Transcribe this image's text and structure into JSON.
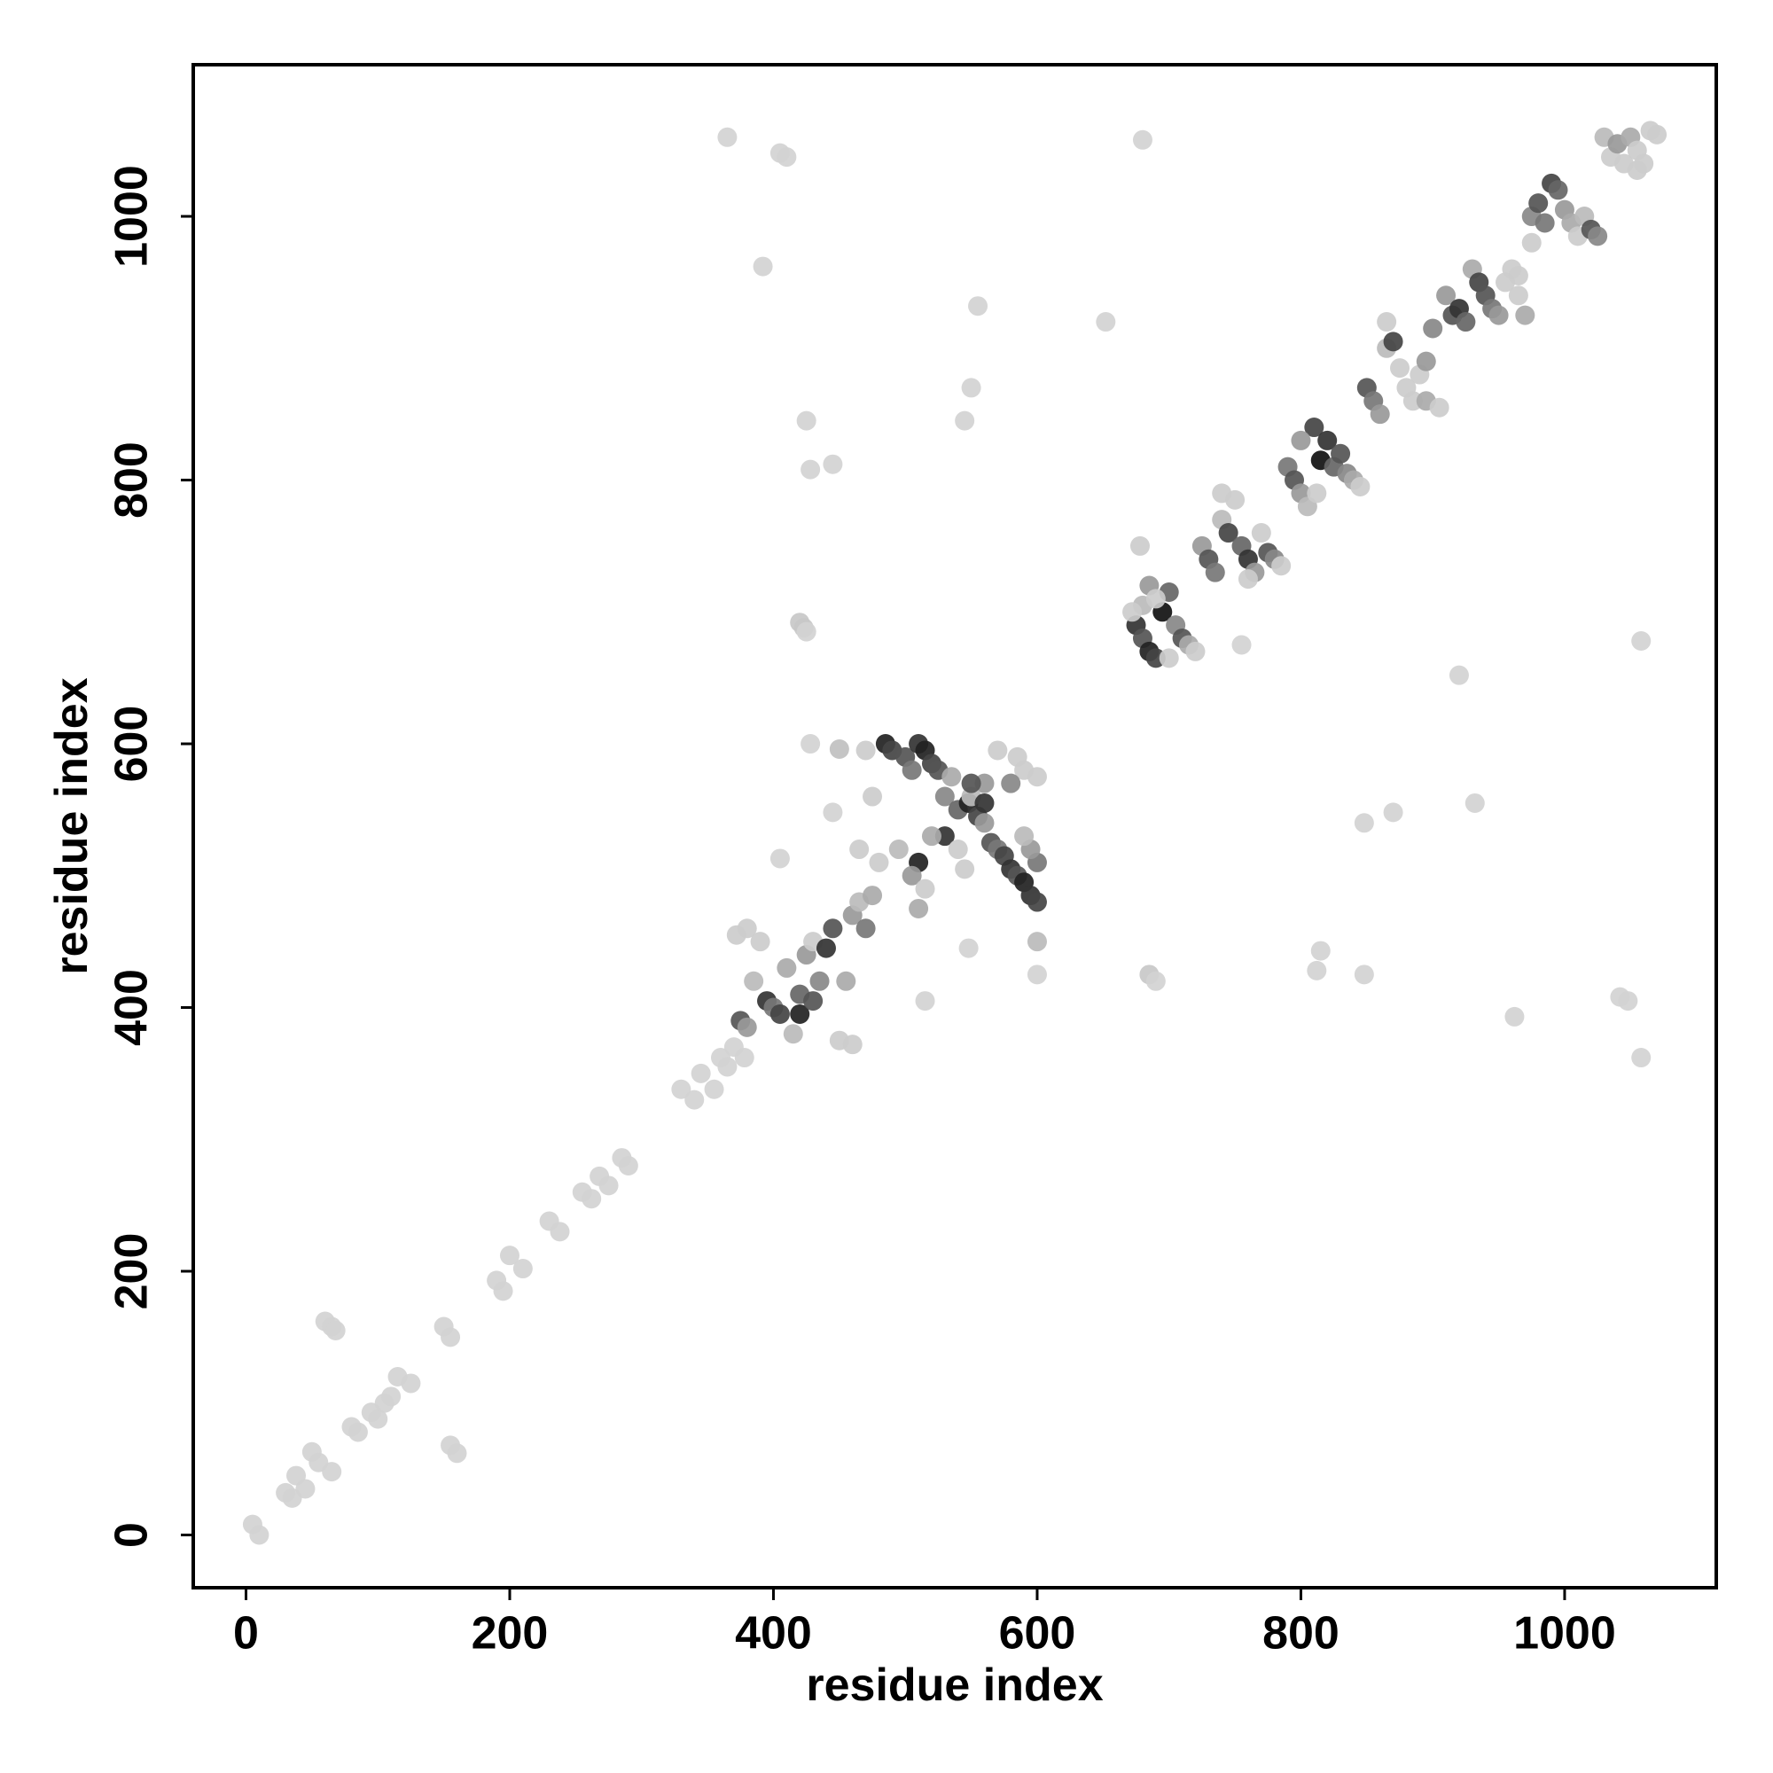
{
  "chart_data": {
    "type": "scatter",
    "xlabel": "residue index",
    "ylabel": "residue index",
    "xlim": [
      -40,
      1115
    ],
    "ylim": [
      -40,
      1115
    ],
    "xticks": [
      0,
      200,
      400,
      600,
      800,
      1000
    ],
    "yticks": [
      0,
      200,
      400,
      600,
      800,
      1000
    ],
    "series": [
      {
        "x": [
          5,
          10,
          30,
          35,
          38,
          45,
          50,
          55,
          65,
          60,
          65,
          68,
          80,
          85,
          95,
          100,
          105,
          110,
          115,
          125,
          150,
          155,
          155,
          160,
          190,
          195,
          200,
          210,
          230,
          238,
          255,
          262,
          268,
          275,
          285,
          290,
          330,
          340,
          345,
          355,
          360,
          365,
          370,
          378,
          365,
          405,
          410,
          392,
          555,
          652,
          680,
          425,
          545,
          550,
          428,
          445,
          420,
          423,
          425,
          428,
          450,
          445,
          405,
          515,
          548,
          600,
          600,
          685,
          690,
          755,
          812,
          815,
          848,
          848,
          870,
          920,
          932,
          962,
          1042,
          1048,
          1058,
          1058,
          375,
          380,
          385,
          390,
          395,
          400,
          405,
          410,
          415,
          420,
          425,
          430,
          435,
          440,
          445,
          450,
          455,
          460,
          465,
          470,
          475,
          480,
          372,
          380,
          420,
          430,
          460,
          485,
          490,
          500,
          505,
          510,
          515,
          520,
          525,
          530,
          535,
          540,
          548,
          555,
          560,
          565,
          570,
          575,
          580,
          585,
          590,
          595,
          600,
          600,
          595,
          590,
          585,
          590,
          600,
          570,
          580,
          560,
          550,
          530,
          520,
          510,
          505,
          495,
          510,
          515,
          540,
          545,
          465,
          475,
          470,
          550,
          560,
          675,
          680,
          685,
          690,
          695,
          700,
          705,
          710,
          715,
          720,
          680,
          685,
          690,
          678,
          700,
          672,
          725,
          730,
          735,
          740,
          745,
          750,
          755,
          760,
          765,
          770,
          775,
          780,
          785,
          740,
          760,
          790,
          795,
          800,
          805,
          810,
          815,
          820,
          825,
          830,
          835,
          840,
          845,
          812,
          800,
          850,
          855,
          860,
          865,
          870,
          875,
          880,
          885,
          890,
          895,
          900,
          905,
          910,
          915,
          920,
          925,
          930,
          935,
          940,
          945,
          950,
          955,
          960,
          965,
          970,
          865,
          895,
          975,
          980,
          985,
          990,
          995,
          1000,
          1005,
          1010,
          1015,
          1020,
          1025,
          965,
          975,
          1030,
          1035,
          1040,
          1045,
          1050,
          1055,
          1060,
          1065,
          1070,
          1055
        ],
        "values": [
          8,
          0,
          32,
          28,
          45,
          35,
          63,
          55,
          48,
          162,
          158,
          155,
          82,
          78,
          93,
          88,
          100,
          105,
          120,
          115,
          158,
          150,
          68,
          62,
          193,
          185,
          212,
          202,
          238,
          230,
          260,
          255,
          272,
          265,
          286,
          280,
          338,
          330,
          350,
          338,
          362,
          355,
          370,
          362,
          1060,
          1048,
          1045,
          962,
          932,
          920,
          1058,
          845,
          845,
          870,
          808,
          812,
          692,
          688,
          685,
          600,
          596,
          548,
          513,
          405,
          445,
          425,
          450,
          425,
          420,
          675,
          428,
          443,
          425,
          540,
          548,
          652,
          555,
          393,
          408,
          405,
          362,
          678,
          390,
          385,
          420,
          450,
          405,
          400,
          395,
          430,
          380,
          410,
          440,
          450,
          420,
          445,
          460,
          375,
          420,
          470,
          480,
          460,
          485,
          510,
          455,
          460,
          395,
          405,
          372,
          600,
          595,
          590,
          580,
          600,
          595,
          585,
          580,
          560,
          575,
          550,
          555,
          545,
          540,
          525,
          520,
          515,
          505,
          500,
          495,
          485,
          480,
          510,
          520,
          530,
          590,
          580,
          575,
          595,
          570,
          570,
          560,
          530,
          530,
          510,
          500,
          520,
          475,
          490,
          520,
          505,
          520,
          560,
          595,
          570,
          555,
          690,
          680,
          670,
          665,
          700,
          715,
          690,
          680,
          675,
          670,
          705,
          720,
          710,
          750,
          665,
          700,
          750,
          740,
          730,
          770,
          760,
          785,
          750,
          740,
          730,
          760,
          745,
          740,
          735,
          790,
          725,
          810,
          800,
          790,
          780,
          840,
          815,
          830,
          810,
          820,
          805,
          800,
          795,
          790,
          830,
          870,
          860,
          850,
          900,
          905,
          885,
          870,
          860,
          880,
          860,
          915,
          855,
          940,
          925,
          930,
          920,
          960,
          950,
          940,
          930,
          925,
          950,
          960,
          940,
          925,
          920,
          890,
          1000,
          1010,
          995,
          1025,
          1020,
          1005,
          995,
          985,
          1000,
          990,
          985,
          955,
          980,
          1060,
          1045,
          1055,
          1040,
          1060,
          1050,
          1040,
          1065,
          1062,
          1035
        ],
        "colors": [
          "#d3d3d3",
          "#d3d3d3",
          "#d3d3d3",
          "#d3d3d3",
          "#d3d3d3",
          "#d3d3d3",
          "#d3d3d3",
          "#d3d3d3",
          "#d3d3d3",
          "#d3d3d3",
          "#d3d3d3",
          "#d3d3d3",
          "#d3d3d3",
          "#d3d3d3",
          "#d3d3d3",
          "#d3d3d3",
          "#d3d3d3",
          "#d3d3d3",
          "#d3d3d3",
          "#d3d3d3",
          "#d3d3d3",
          "#d3d3d3",
          "#d3d3d3",
          "#d3d3d3",
          "#d3d3d3",
          "#d3d3d3",
          "#d3d3d3",
          "#d3d3d3",
          "#d3d3d3",
          "#d3d3d3",
          "#d3d3d3",
          "#d3d3d3",
          "#d3d3d3",
          "#d3d3d3",
          "#d3d3d3",
          "#d3d3d3",
          "#d3d3d3",
          "#d3d3d3",
          "#d3d3d3",
          "#d3d3d3",
          "#d3d3d3",
          "#d3d3d3",
          "#d3d3d3",
          "#d3d3d3",
          "#d3d3d3",
          "#d3d3d3",
          "#d3d3d3",
          "#d3d3d3",
          "#d3d3d3",
          "#d3d3d3",
          "#d3d3d3",
          "#d3d3d3",
          "#d3d3d3",
          "#d3d3d3",
          "#d3d3d3",
          "#d3d3d3",
          "#c8c8c8",
          "#c8c8c8",
          "#d3d3d3",
          "#d3d3d3",
          "#c0c0c0",
          "#d3d3d3",
          "#d3d3d3",
          "#d3d3d3",
          "#d3d3d3",
          "#d3d3d3",
          "#bbbbbb",
          "#c8c8c8",
          "#d3d3d3",
          "#d3d3d3",
          "#d3d3d3",
          "#d3d3d3",
          "#d3d3d3",
          "#d3d3d3",
          "#d3d3d3",
          "#d3d3d3",
          "#d3d3d3",
          "#d3d3d3",
          "#d3d3d3",
          "#d3d3d3",
          "#d3d3d3",
          "#d3d3d3",
          "#555555",
          "#999999",
          "#bbbbbb",
          "#cccccc",
          "#333333",
          "#777777",
          "#444444",
          "#aaaaaa",
          "#bbbbbb",
          "#666666",
          "#999999",
          "#cccccc",
          "#888888",
          "#333333",
          "#555555",
          "#cccccc",
          "#aaaaaa",
          "#999999",
          "#bbbbbb",
          "#777777",
          "#aaaaaa",
          "#cccccc",
          "#cccccc",
          "#cccccc",
          "#222222",
          "#555555",
          "#cccccc",
          "#222222",
          "#444444",
          "#555555",
          "#777777",
          "#333333",
          "#222222",
          "#444444",
          "#555555",
          "#888888",
          "#aaaaaa",
          "#666666",
          "#222222",
          "#444444",
          "#999999",
          "#555555",
          "#777777",
          "#444444",
          "#333333",
          "#555555",
          "#222222",
          "#333333",
          "#444444",
          "#777777",
          "#999999",
          "#bbbbbb",
          "#cccccc",
          "#cccccc",
          "#cccccc",
          "#cccccc",
          "#888888",
          "#999999",
          "#bbbbbb",
          "#333333",
          "#aaaaaa",
          "#222222",
          "#999999",
          "#bbbbbb",
          "#aaaaaa",
          "#cccccc",
          "#cccccc",
          "#cccccc",
          "#cccccc",
          "#cccccc",
          "#cccccc",
          "#555555",
          "#333333",
          "#333333",
          "#555555",
          "#222222",
          "#444444",
          "#111111",
          "#666666",
          "#888888",
          "#555555",
          "#aaaaaa",
          "#cccccc",
          "#bbbbbb",
          "#999999",
          "#cccccc",
          "#cccccc",
          "#cccccc",
          "#cccccc",
          "#999999",
          "#555555",
          "#777777",
          "#bbbbbb",
          "#444444",
          "#cccccc",
          "#666666",
          "#333333",
          "#999999",
          "#cccccc",
          "#555555",
          "#888888",
          "#cccccc",
          "#cccccc",
          "#cccccc",
          "#777777",
          "#555555",
          "#999999",
          "#bbbbbb",
          "#444444",
          "#111111",
          "#333333",
          "#666666",
          "#555555",
          "#888888",
          "#aaaaaa",
          "#cccccc",
          "#cccccc",
          "#999999",
          "#555555",
          "#777777",
          "#999999",
          "#bbbbbb",
          "#444444",
          "#cccccc",
          "#cccccc",
          "#cccccc",
          "#cccccc",
          "#aaaaaa",
          "#888888",
          "#cccccc",
          "#999999",
          "#555555",
          "#333333",
          "#666666",
          "#aaaaaa",
          "#444444",
          "#555555",
          "#777777",
          "#999999",
          "#cccccc",
          "#cccccc",
          "#cccccc",
          "#aaaaaa",
          "#cccccc",
          "#999999",
          "#888888",
          "#555555",
          "#777777",
          "#444444",
          "#666666",
          "#999999",
          "#aaaaaa",
          "#cccccc",
          "#bbbbbb",
          "#555555",
          "#888888",
          "#cccccc",
          "#cccccc",
          "#bbbbbb",
          "#cccccc",
          "#999999",
          "#cccccc",
          "#aaaaaa",
          "#cccccc",
          "#cccccc",
          "#cccccc",
          "#cccccc",
          "#cccccc"
        ]
      }
    ]
  }
}
